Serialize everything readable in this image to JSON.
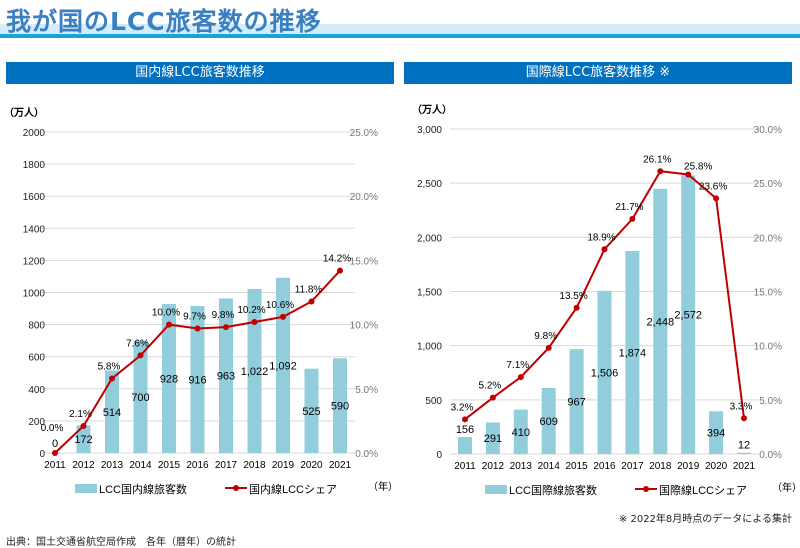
{
  "title": "我が国のLCC旅客数の推移",
  "note": "※ 2022年8月時点のデータによる集計",
  "source": "出典：国土交通省航空局作成　各年（暦年）の統計",
  "colors": {
    "bar": "#92cddc",
    "line": "#c00000",
    "header": "#0070c0"
  },
  "chart_data": [
    {
      "type": "bar+line",
      "panel_title": "国内線LCC旅客数推移",
      "yunit": "（万人）",
      "xunit": "（年）",
      "categories": [
        "2011",
        "2012",
        "2013",
        "2014",
        "2015",
        "2016",
        "2017",
        "2018",
        "2019",
        "2020",
        "2021"
      ],
      "ylim": [
        0,
        2000
      ],
      "yticks": [
        "0",
        "200",
        "400",
        "600",
        "800",
        "1000",
        "1200",
        "1400",
        "1600",
        "1800",
        "2000"
      ],
      "y2lim": [
        0,
        25
      ],
      "y2ticks": [
        "0.0%",
        "5.0%",
        "10.0%",
        "15.0%",
        "20.0%",
        "25.0%"
      ],
      "series": [
        {
          "name": "LCC国内線旅客数",
          "type": "bar",
          "values": [
            0,
            172,
            514,
            700,
            928,
            916,
            963,
            1022,
            1092,
            525,
            590
          ],
          "labels": [
            "0",
            "172",
            "514",
            "700",
            "928",
            "916",
            "963",
            "1,022",
            "1,092",
            "525",
            "590"
          ]
        },
        {
          "name": "国内線LCCシェア",
          "type": "line",
          "axis": "right",
          "values": [
            0.0,
            2.1,
            5.8,
            7.6,
            10.0,
            9.7,
            9.8,
            10.2,
            10.6,
            11.8,
            14.2
          ],
          "labels": [
            "0.0%",
            "2.1%",
            "5.8%",
            "7.6%",
            "10.0%",
            "9.7%",
            "9.8%",
            "10.2%",
            "10.6%",
            "11.8%",
            "14.2%"
          ]
        }
      ],
      "legend": "bottom"
    },
    {
      "type": "bar+line",
      "panel_title": "国際線LCC旅客数推移 ※",
      "yunit": "（万人）",
      "xunit": "（年）",
      "categories": [
        "2011",
        "2012",
        "2013",
        "2014",
        "2015",
        "2016",
        "2017",
        "2018",
        "2019",
        "2020",
        "2021"
      ],
      "ylim": [
        0,
        3000
      ],
      "yticks": [
        "0",
        "500",
        "1,000",
        "1,500",
        "2,000",
        "2,500",
        "3,000"
      ],
      "y2lim": [
        0,
        30
      ],
      "y2ticks": [
        "0.0%",
        "5.0%",
        "10.0%",
        "15.0%",
        "20.0%",
        "25.0%",
        "30.0%"
      ],
      "series": [
        {
          "name": "LCC国際線旅客数",
          "type": "bar",
          "values": [
            156,
            291,
            410,
            609,
            967,
            1506,
            1874,
            2448,
            2572,
            394,
            12
          ],
          "labels": [
            "156",
            "291",
            "410",
            "609",
            "967",
            "1,506",
            "1,874",
            "2,448",
            "2,572",
            "394",
            "12"
          ]
        },
        {
          "name": "国際線LCCシェア",
          "type": "line",
          "axis": "right",
          "values": [
            3.2,
            5.2,
            7.1,
            9.8,
            13.5,
            18.9,
            21.7,
            26.1,
            25.8,
            23.6,
            3.3
          ],
          "labels": [
            "3.2%",
            "5.2%",
            "7.1%",
            "9.8%",
            "13.5%",
            "18.9%",
            "21.7%",
            "26.1%",
            "25.8%",
            "23.6%",
            "3.3%"
          ]
        }
      ],
      "legend": "bottom"
    }
  ]
}
